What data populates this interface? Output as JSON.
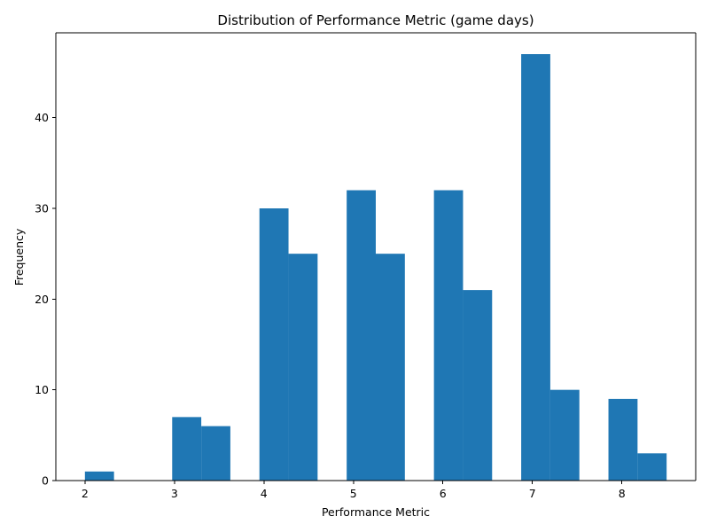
{
  "chart_data": {
    "type": "bar",
    "title": "Distribution of Performance Metric (game days)",
    "xlabel": "Performance Metric",
    "ylabel": "Frequency",
    "xlim": [
      1.675,
      8.825
    ],
    "ylim": [
      0,
      49.35
    ],
    "xticks": [
      2,
      3,
      4,
      5,
      6,
      7,
      8
    ],
    "yticks": [
      0,
      10,
      20,
      30,
      40
    ],
    "bin_edges": [
      2.0,
      2.325,
      2.65,
      2.975,
      3.3,
      3.625,
      3.95,
      4.275,
      4.6,
      4.925,
      5.25,
      5.575,
      5.9,
      6.225,
      6.55,
      6.875,
      7.2,
      7.525,
      7.85,
      8.175,
      8.5
    ],
    "values": [
      1,
      0,
      0,
      7,
      6,
      0,
      30,
      25,
      0,
      32,
      25,
      0,
      32,
      21,
      0,
      47,
      10,
      0,
      9,
      3
    ],
    "bar_color": "#1f77b4",
    "grid": false,
    "legend": null
  }
}
